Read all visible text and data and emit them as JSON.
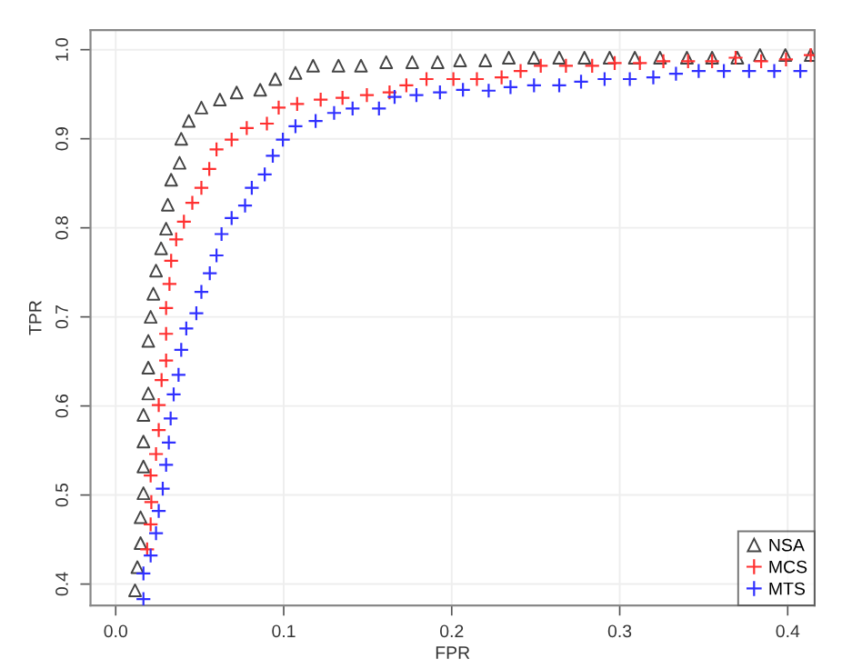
{
  "chart_data": {
    "type": "scatter",
    "xlabel": "FPR",
    "ylabel": "TPR",
    "xlim": [
      -0.015,
      0.416
    ],
    "ylim": [
      0.376,
      1.022
    ],
    "xticks": [
      {
        "value": 0,
        "label": "0.0"
      },
      0.1,
      0.2,
      0.3,
      0.4
    ],
    "yticks": [
      0.4,
      0.5,
      0.6,
      0.7,
      0.8,
      0.9,
      {
        "value": 1,
        "label": "1.0"
      }
    ],
    "grid": true,
    "legend": "bottom right",
    "series": [
      {
        "name": "NSA",
        "color": "#444444",
        "marker": "triangle",
        "x": [
          0.0115,
          0.0129,
          0.0148,
          0.0148,
          0.0165,
          0.0165,
          0.0165,
          0.0165,
          0.0194,
          0.0194,
          0.0194,
          0.0208,
          0.0224,
          0.024,
          0.027,
          0.03,
          0.031,
          0.033,
          0.038,
          0.039,
          0.0435,
          0.051,
          0.062,
          0.072,
          0.086,
          0.095,
          0.107,
          0.1175,
          0.1326,
          0.146,
          0.161,
          0.1765,
          0.1916,
          0.205,
          0.22,
          0.234,
          0.249,
          0.264,
          0.279,
          0.294,
          0.309,
          0.324,
          0.34,
          0.355,
          0.37,
          0.3835,
          0.3986,
          0.4137
        ],
        "values": [
          0.393,
          0.419,
          0.446,
          0.475,
          0.502,
          0.532,
          0.56,
          0.59,
          0.614,
          0.643,
          0.673,
          0.7,
          0.726,
          0.752,
          0.777,
          0.799,
          0.826,
          0.854,
          0.873,
          0.9,
          0.92,
          0.935,
          0.944,
          0.952,
          0.955,
          0.967,
          0.974,
          0.982,
          0.982,
          0.982,
          0.986,
          0.986,
          0.986,
          0.988,
          0.988,
          0.991,
          0.991,
          0.991,
          0.991,
          0.991,
          0.991,
          0.991,
          0.991,
          0.991,
          0.991,
          0.994,
          0.994,
          0.994
        ]
      },
      {
        "name": "MCS",
        "color": "#ff3030",
        "marker": "cross",
        "x": [
          0.0187,
          0.0208,
          0.0212,
          0.0208,
          0.024,
          0.0256,
          0.0256,
          0.0273,
          0.03,
          0.03,
          0.03,
          0.032,
          0.033,
          0.036,
          0.0406,
          0.0456,
          0.051,
          0.0557,
          0.06,
          0.069,
          0.078,
          0.09,
          0.097,
          0.108,
          0.122,
          0.135,
          0.1495,
          0.163,
          0.173,
          0.185,
          0.201,
          0.215,
          0.2297,
          0.241,
          0.253,
          0.268,
          0.2836,
          0.297,
          0.312,
          0.326,
          0.3407,
          0.355,
          0.369,
          0.3842,
          0.399,
          0.4137
        ],
        "values": [
          0.439,
          0.467,
          0.492,
          0.522,
          0.546,
          0.573,
          0.601,
          0.629,
          0.651,
          0.681,
          0.71,
          0.737,
          0.763,
          0.787,
          0.807,
          0.828,
          0.845,
          0.866,
          0.888,
          0.899,
          0.912,
          0.917,
          0.935,
          0.939,
          0.944,
          0.946,
          0.949,
          0.952,
          0.96,
          0.967,
          0.967,
          0.967,
          0.969,
          0.976,
          0.982,
          0.982,
          0.982,
          0.985,
          0.985,
          0.987,
          0.987,
          0.987,
          0.991,
          0.987,
          0.989,
          0.994
        ]
      },
      {
        "name": "MTS",
        "color": "#3030ff",
        "marker": "cross",
        "x": [
          0.0165,
          0.0165,
          0.0208,
          0.024,
          0.0256,
          0.028,
          0.03,
          0.0316,
          0.0327,
          0.0345,
          0.0374,
          0.039,
          0.042,
          0.048,
          0.051,
          0.056,
          0.06,
          0.063,
          0.069,
          0.077,
          0.081,
          0.0887,
          0.0935,
          0.0995,
          0.107,
          0.119,
          0.13,
          0.141,
          0.1567,
          0.166,
          0.179,
          0.193,
          0.2067,
          0.222,
          0.235,
          0.249,
          0.264,
          0.277,
          0.291,
          0.306,
          0.32,
          0.3335,
          0.347,
          0.362,
          0.377,
          0.392,
          0.4075
        ],
        "values": [
          0.383,
          0.412,
          0.432,
          0.457,
          0.482,
          0.507,
          0.534,
          0.559,
          0.586,
          0.613,
          0.635,
          0.663,
          0.687,
          0.704,
          0.728,
          0.749,
          0.769,
          0.793,
          0.811,
          0.825,
          0.845,
          0.86,
          0.881,
          0.899,
          0.914,
          0.92,
          0.929,
          0.934,
          0.934,
          0.947,
          0.949,
          0.952,
          0.955,
          0.954,
          0.958,
          0.96,
          0.96,
          0.964,
          0.967,
          0.967,
          0.969,
          0.973,
          0.976,
          0.976,
          0.976,
          0.976,
          0.976
        ]
      }
    ]
  }
}
